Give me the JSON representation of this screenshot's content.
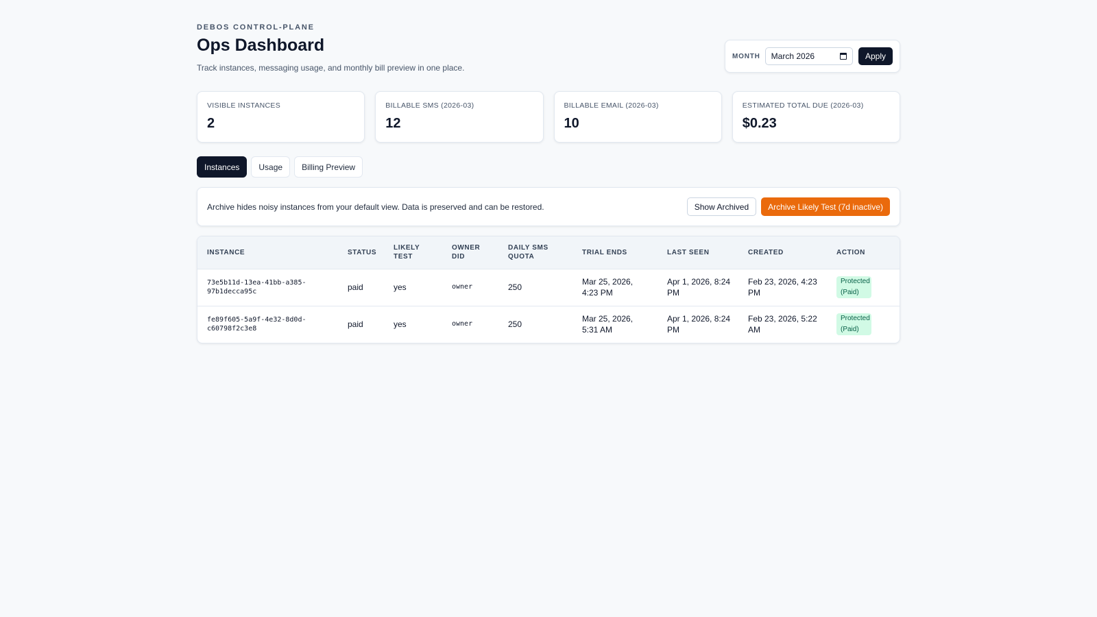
{
  "header": {
    "eyebrow": "DEBOS CONTROL-PLANE",
    "title": "Ops Dashboard",
    "subtitle": "Track instances, messaging usage, and monthly bill preview in one place."
  },
  "month_picker": {
    "label": "MONTH",
    "value": "March 2026",
    "apply_label": "Apply"
  },
  "stats": [
    {
      "label": "VISIBLE INSTANCES",
      "value": "2"
    },
    {
      "label": "BILLABLE SMS (2026-03)",
      "value": "12"
    },
    {
      "label": "BILLABLE EMAIL (2026-03)",
      "value": "10"
    },
    {
      "label": "ESTIMATED TOTAL DUE (2026-03)",
      "value": "$0.23"
    }
  ],
  "tabs": [
    {
      "label": "Instances",
      "active": true
    },
    {
      "label": "Usage",
      "active": false
    },
    {
      "label": "Billing Preview",
      "active": false
    }
  ],
  "archive_bar": {
    "text": "Archive hides noisy instances from your default view. Data is preserved and can be restored.",
    "show_archived_label": "Show Archived",
    "archive_label": "Archive Likely Test (7d inactive)",
    "archive_color": "#ea6a0c"
  },
  "table": {
    "columns": [
      "INSTANCE",
      "STATUS",
      "LIKELY TEST",
      "OWNER DID",
      "DAILY SMS QUOTA",
      "TRIAL ENDS",
      "LAST SEEN",
      "CREATED",
      "ACTION"
    ],
    "rows": [
      {
        "instance_line1": "73e5b11d-13ea-41bb-a385-",
        "instance_line2": "97b1decca95c",
        "status": "paid",
        "likely_test": "yes",
        "owner_did": "owner",
        "quota": "250",
        "trial_ends": "Mar 25, 2026, 4:23 PM",
        "last_seen": "Apr 1, 2026, 8:24 PM",
        "created": "Feb 23, 2026, 4:23 PM",
        "action": "Protected (Paid)"
      },
      {
        "instance_line1": "fe89f605-5a9f-4e32-8d0d-",
        "instance_line2": "c60798f2c3e8",
        "status": "paid",
        "likely_test": "yes",
        "owner_did": "owner",
        "quota": "250",
        "trial_ends": "Mar 25, 2026, 5:31 AM",
        "last_seen": "Apr 1, 2026, 8:24 PM",
        "created": "Feb 23, 2026, 5:22 AM",
        "action": "Protected (Paid)"
      }
    ]
  }
}
